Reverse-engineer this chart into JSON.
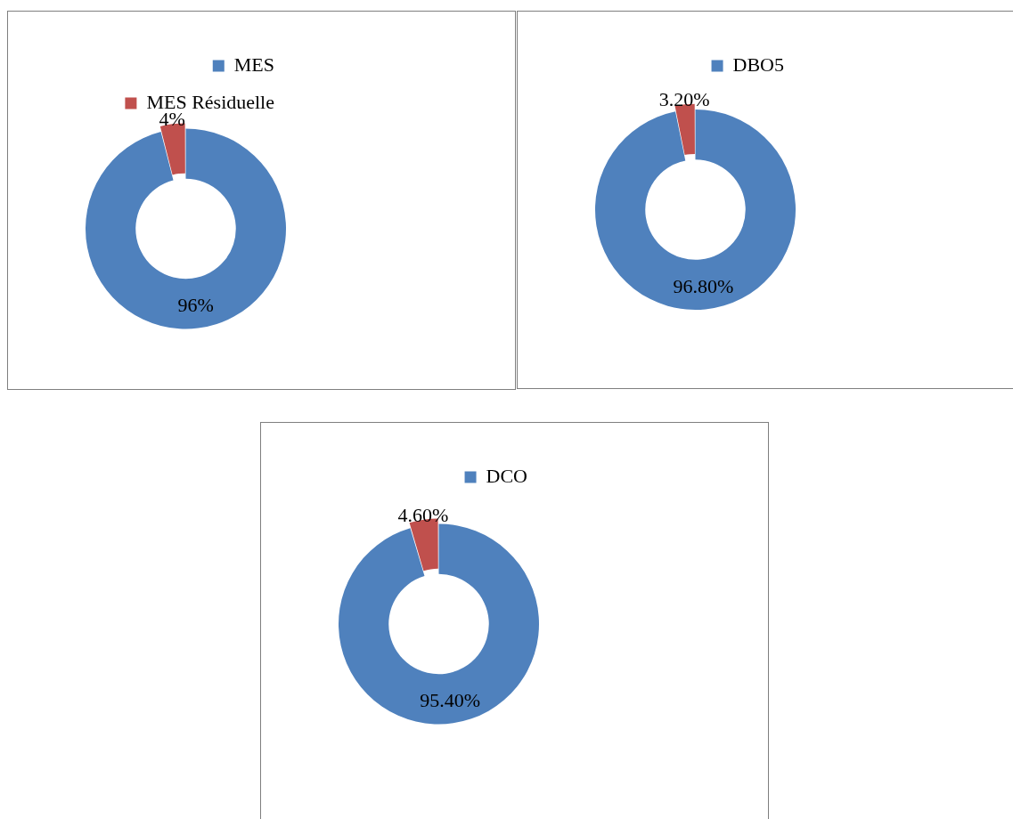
{
  "chart_data": [
    {
      "type": "donut",
      "categories": [
        "MES",
        "MES Résiduelle"
      ],
      "values": [
        96,
        4
      ],
      "colors": [
        "#4f81bd",
        "#c0504d"
      ],
      "value_labels": [
        "96%",
        "4%"
      ],
      "legend": "top right"
    },
    {
      "type": "donut",
      "categories": [
        "DBO5",
        null
      ],
      "values": [
        96.8,
        3.2
      ],
      "colors": [
        "#4f81bd",
        "#c0504d"
      ],
      "value_labels": [
        "96.80%",
        "3.20%"
      ],
      "legend": "top right"
    },
    {
      "type": "donut",
      "categories": [
        "DCO",
        null
      ],
      "values": [
        95.4,
        4.6
      ],
      "colors": [
        "#4f81bd",
        "#c0504d"
      ],
      "value_labels": [
        "95.40%",
        "4.60%"
      ],
      "legend": "top right"
    }
  ]
}
